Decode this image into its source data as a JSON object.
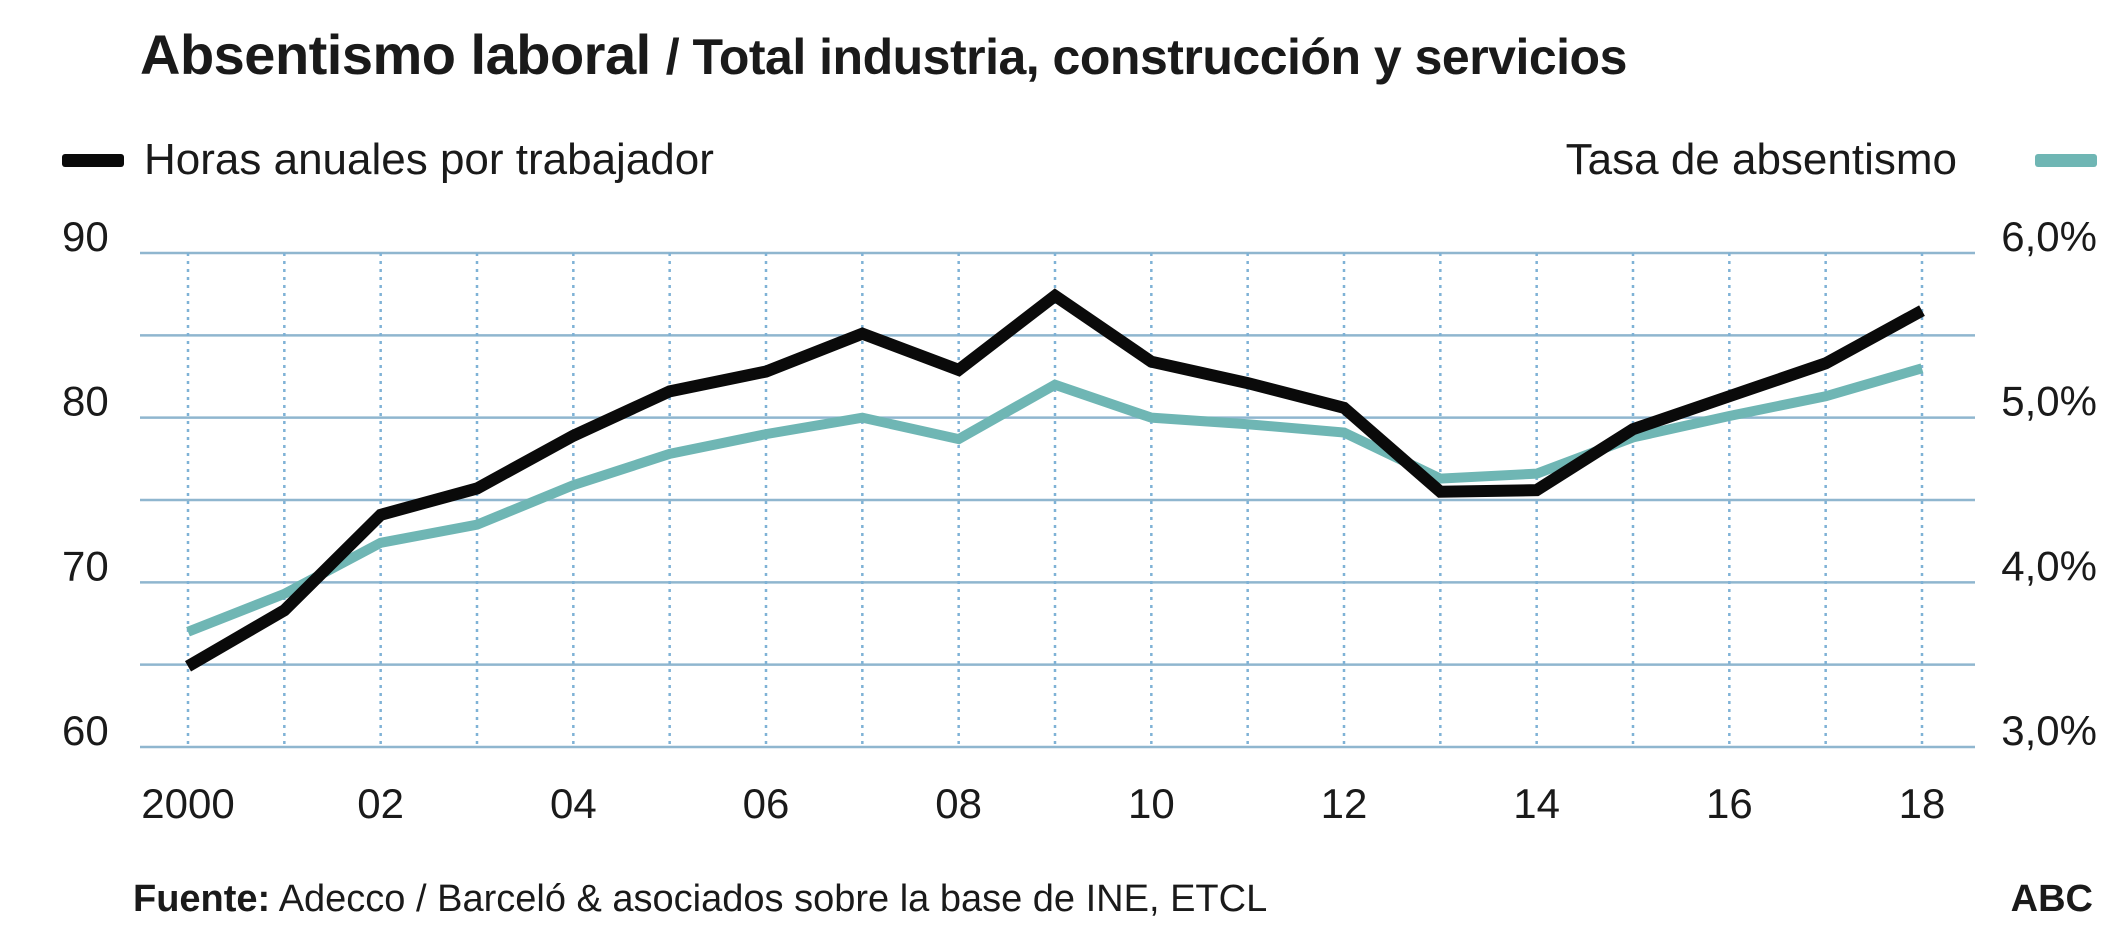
{
  "title": {
    "main": "Absentismo laboral",
    "sub": "/ Total industria, construcción y servicios"
  },
  "legend": {
    "left_label": "Horas anuales por trabajador",
    "right_label": "Tasa de absentismo"
  },
  "colors": {
    "hours": "#0a0a0a",
    "rate": "#6fb6b4",
    "grid": "#8fb6cf",
    "vgrid": "#7fb2d6"
  },
  "source": {
    "label": "Fuente:",
    "text": "Adecco /  Barceló & asociados sobre la base de INE, ETCL"
  },
  "brand": "ABC",
  "chart_data": {
    "type": "line",
    "x": [
      2000,
      2001,
      2002,
      2003,
      2004,
      2005,
      2006,
      2007,
      2008,
      2009,
      2010,
      2011,
      2012,
      2013,
      2014,
      2015,
      2016,
      2017,
      2018
    ],
    "xtick_values": [
      2000,
      2002,
      2004,
      2006,
      2008,
      2010,
      2012,
      2014,
      2016,
      2018
    ],
    "xtick_labels": [
      "2000",
      "02",
      "04",
      "06",
      "08",
      "10",
      "12",
      "14",
      "16",
      "18"
    ],
    "series": [
      {
        "name": "Horas anuales por trabajador",
        "axis": "left",
        "values": [
          64.9,
          68.3,
          74.1,
          75.7,
          78.9,
          81.6,
          82.8,
          85.1,
          82.9,
          87.4,
          83.4,
          82.1,
          80.6,
          75.5,
          75.6,
          79.3,
          81.3,
          83.3,
          86.5
        ]
      },
      {
        "name": "Tasa de absentismo",
        "axis": "right",
        "values": [
          3.7,
          3.93,
          4.24,
          4.35,
          4.59,
          4.78,
          4.9,
          5.0,
          4.87,
          5.2,
          5.0,
          4.96,
          4.91,
          4.63,
          4.66,
          4.88,
          5.01,
          5.13,
          5.3
        ]
      }
    ],
    "y_left": {
      "ylim": [
        60,
        90
      ],
      "ticks": [
        60,
        70,
        80,
        90
      ],
      "tick_labels": [
        "60",
        "70",
        "80",
        "90"
      ]
    },
    "y_right": {
      "ylim": [
        3.0,
        6.0
      ],
      "ticks": [
        3.0,
        4.0,
        5.0,
        6.0
      ],
      "tick_labels": [
        "3,0%",
        "4,0%",
        "5,0%",
        "6,0%"
      ]
    },
    "grid_values_left": [
      60,
      65,
      70,
      75,
      80,
      85,
      90
    ],
    "grid": true,
    "legend_placement": "top"
  }
}
